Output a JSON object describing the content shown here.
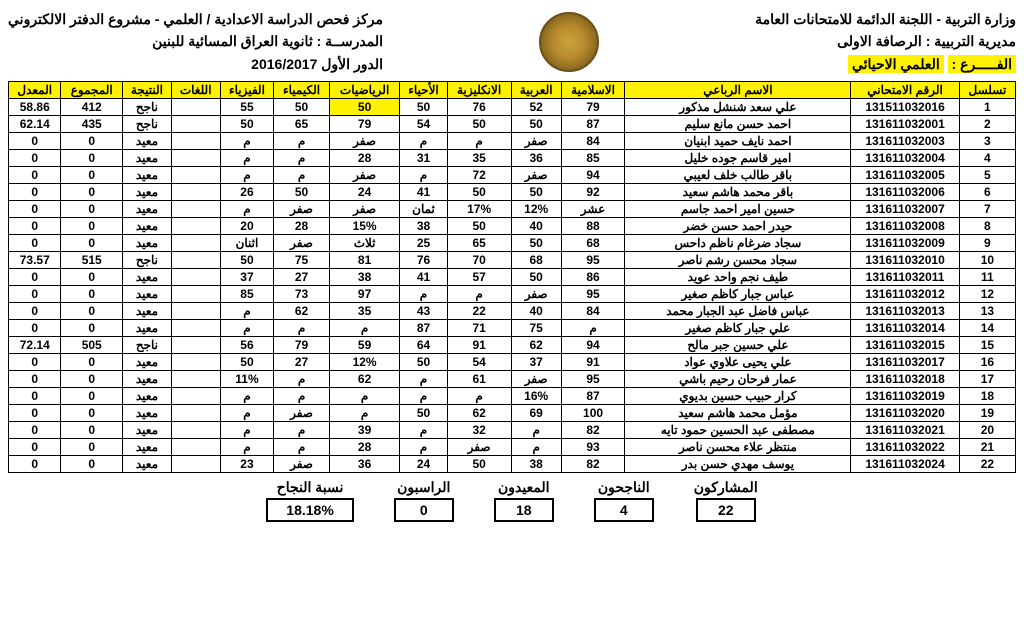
{
  "header": {
    "right_l1": "وزارة التربية - اللجنة الدائمة للامتحانات العامة",
    "right_l2_label": "مديرية التربيية :",
    "right_l2_val": "الرصافة الاولى",
    "right_l3_label": "الفـــــرع :",
    "right_l3_val": "العلمي الاحيائي",
    "left_l1": "مركز فحص الدراسة الاعدادية / العلمي - مشروع الدفتر الالكتروني",
    "left_l2_label": "المدرســة :",
    "left_l2_val": "ثانوية العراق المسائية للبنين",
    "left_l3": "الدور الأول 2016/2017"
  },
  "columns": [
    "تسلسل",
    "الرقم الامتحاني",
    "الاسم الرباعي",
    "الاسلامية",
    "العربية",
    "الانكليزية",
    "الأحياء",
    "الرياضيات",
    "الكيمياء",
    "الفيزياء",
    "اللغات",
    "النتيجة",
    "المجموع",
    "المعدل"
  ],
  "rows": [
    [
      "1",
      "131511032016",
      "علي سعد شنشل مذكور",
      "79",
      "52",
      "76",
      "50",
      "50",
      "50",
      "55",
      "",
      "ناجح",
      "412",
      "58.86"
    ],
    [
      "2",
      "131611032001",
      "احمد حسن مانع سليم",
      "87",
      "50",
      "50",
      "54",
      "79",
      "65",
      "50",
      "",
      "ناجح",
      "435",
      "62.14"
    ],
    [
      "3",
      "131611032003",
      "احمد نايف حميد ابنيان",
      "84",
      "صفر",
      "م",
      "م",
      "صفر",
      "م",
      "م",
      "",
      "معيد",
      "0",
      "0"
    ],
    [
      "4",
      "131611032004",
      "امير قاسم جوده خليل",
      "85",
      "36",
      "35",
      "31",
      "28",
      "م",
      "م",
      "",
      "معيد",
      "0",
      "0"
    ],
    [
      "5",
      "131611032005",
      "باقر طالب خلف لعيبي",
      "94",
      "صفر",
      "72",
      "م",
      "صفر",
      "م",
      "م",
      "",
      "معيد",
      "0",
      "0"
    ],
    [
      "6",
      "131611032006",
      "باقر محمد هاشم سعيد",
      "92",
      "50",
      "50",
      "41",
      "24",
      "50",
      "26",
      "",
      "معيد",
      "0",
      "0"
    ],
    [
      "7",
      "131611032007",
      "حسين امير احمد جاسم",
      "عشر",
      "12%",
      "17%",
      "ثمان",
      "صفر",
      "صفر",
      "م",
      "",
      "معيد",
      "0",
      "0"
    ],
    [
      "8",
      "131611032008",
      "حيدر احمد حسن خضر",
      "88",
      "40",
      "50",
      "38",
      "15%",
      "28",
      "20",
      "",
      "معيد",
      "0",
      "0"
    ],
    [
      "9",
      "131611032009",
      "سجاد ضرغام ناظم داحس",
      "68",
      "50",
      "65",
      "25",
      "ثلاث",
      "صفر",
      "اثنان",
      "",
      "معيد",
      "0",
      "0"
    ],
    [
      "10",
      "131611032010",
      "سجاد محسن رشم ناصر",
      "95",
      "68",
      "70",
      "76",
      "81",
      "75",
      "50",
      "",
      "ناجح",
      "515",
      "73.57"
    ],
    [
      "11",
      "131611032011",
      "طيف نجم واحد عويد",
      "86",
      "50",
      "57",
      "41",
      "38",
      "27",
      "37",
      "",
      "معيد",
      "0",
      "0"
    ],
    [
      "12",
      "131611032012",
      "عباس جبار كاظم صغير",
      "95",
      "صفر",
      "م",
      "م",
      "97",
      "73",
      "85",
      "",
      "معيد",
      "0",
      "0"
    ],
    [
      "13",
      "131611032013",
      "عباس فاضل عبد الجبار محمد",
      "84",
      "40",
      "22",
      "43",
      "35",
      "62",
      "م",
      "",
      "معيد",
      "0",
      "0"
    ],
    [
      "14",
      "131611032014",
      "علي جبار كاظم صغير",
      "م",
      "75",
      "71",
      "87",
      "م",
      "م",
      "م",
      "",
      "معيد",
      "0",
      "0"
    ],
    [
      "15",
      "131611032015",
      "علي حسين جبر مالح",
      "94",
      "62",
      "91",
      "64",
      "59",
      "79",
      "56",
      "",
      "ناجح",
      "505",
      "72.14"
    ],
    [
      "16",
      "131611032017",
      "علي يحيى علاوي عواد",
      "91",
      "37",
      "54",
      "50",
      "12%",
      "27",
      "50",
      "",
      "معيد",
      "0",
      "0"
    ],
    [
      "17",
      "131611032018",
      "عمار فرحان رحيم باشي",
      "95",
      "صفر",
      "61",
      "م",
      "62",
      "م",
      "11%",
      "",
      "معيد",
      "0",
      "0"
    ],
    [
      "18",
      "131611032019",
      "كرار حبيب حسين بديوي",
      "87",
      "16%",
      "م",
      "م",
      "م",
      "م",
      "م",
      "",
      "معيد",
      "0",
      "0"
    ],
    [
      "19",
      "131611032020",
      "مؤمل محمد هاشم سعيد",
      "100",
      "69",
      "62",
      "50",
      "م",
      "صفر",
      "م",
      "",
      "معيد",
      "0",
      "0"
    ],
    [
      "20",
      "131611032021",
      "مصطفى عبد الحسين حمود تايه",
      "82",
      "م",
      "32",
      "م",
      "39",
      "م",
      "م",
      "",
      "معيد",
      "0",
      "0"
    ],
    [
      "21",
      "131611032022",
      "منتظر علاء محسن ناصر",
      "93",
      "م",
      "صفر",
      "م",
      "28",
      "م",
      "م",
      "",
      "معيد",
      "0",
      "0"
    ],
    [
      "22",
      "131611032024",
      "يوسف مهدي حسن بدر",
      "82",
      "38",
      "50",
      "24",
      "36",
      "صفر",
      "23",
      "",
      "معيد",
      "0",
      "0"
    ]
  ],
  "highlight": {
    "row": 0,
    "col": 7
  },
  "summary": {
    "labels": [
      "المشاركون",
      "الناجحون",
      "المعيدون",
      "الراسبون",
      "نسبة النجاح"
    ],
    "values": [
      "22",
      "4",
      "18",
      "0",
      "18.18%"
    ]
  },
  "colors": {
    "highlight": "#fff200",
    "border": "#000000",
    "text": "#000000",
    "bg": "#ffffff"
  }
}
